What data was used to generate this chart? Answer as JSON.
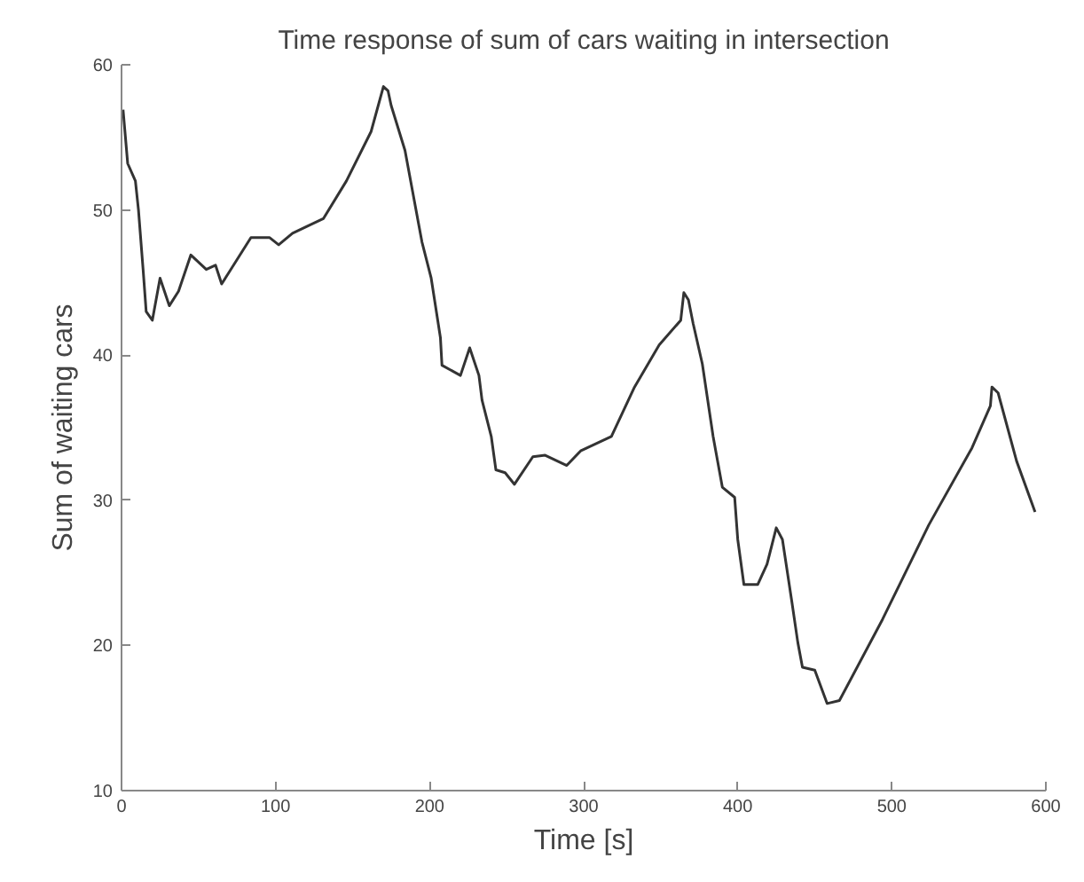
{
  "chart_data": {
    "type": "line",
    "title": "Time response of sum of cars waiting in intersection",
    "xlabel": "Time [s]",
    "ylabel": "Sum of waiting cars",
    "xlim": [
      0,
      600
    ],
    "ylim": [
      10,
      60
    ],
    "xticks": [
      0,
      100,
      200,
      300,
      400,
      500,
      600
    ],
    "yticks": [
      10,
      20,
      30,
      40,
      50,
      60
    ],
    "grid": false,
    "marker": "none",
    "line_style": "solid",
    "series": [
      {
        "color": "#333333",
        "x": [
          1,
          4,
          9,
          11,
          14,
          16,
          20,
          25,
          31,
          37,
          45,
          55,
          61,
          65,
          84,
          96,
          102,
          111,
          131,
          146,
          162,
          170,
          173,
          175,
          184,
          195,
          201,
          207,
          208,
          220,
          226,
          232,
          234,
          240,
          243,
          249,
          255,
          267,
          275,
          289,
          298,
          318,
          333,
          349,
          363,
          365,
          368,
          371,
          377,
          384,
          390,
          398,
          400,
          404,
          413,
          419,
          425,
          429,
          435,
          439,
          442,
          450,
          458,
          466,
          494,
          524,
          552,
          564,
          565,
          569,
          581,
          593
        ],
        "values": [
          56.9,
          53.2,
          52,
          50,
          45.9,
          43,
          42.4,
          45.3,
          43.4,
          44.4,
          46.9,
          45.9,
          46.2,
          44.9,
          48.1,
          48.1,
          47.6,
          48.4,
          49.4,
          52,
          55.4,
          58.5,
          58.2,
          57.2,
          54.1,
          47.8,
          45.3,
          41.2,
          39.3,
          38.6,
          40.5,
          38.6,
          36.9,
          34.4,
          32.1,
          31.9,
          31.1,
          33,
          33.1,
          32.4,
          33.4,
          34.4,
          37.8,
          40.7,
          42.4,
          44.3,
          43.8,
          42.2,
          39.4,
          34.4,
          30.9,
          30.2,
          27.3,
          24.2,
          24.2,
          25.6,
          28.1,
          27.3,
          23.1,
          20.2,
          18.5,
          18.3,
          16,
          16.2,
          21.8,
          28.3,
          33.6,
          36.5,
          37.8,
          37.4,
          32.7,
          29.2
        ]
      }
    ]
  }
}
